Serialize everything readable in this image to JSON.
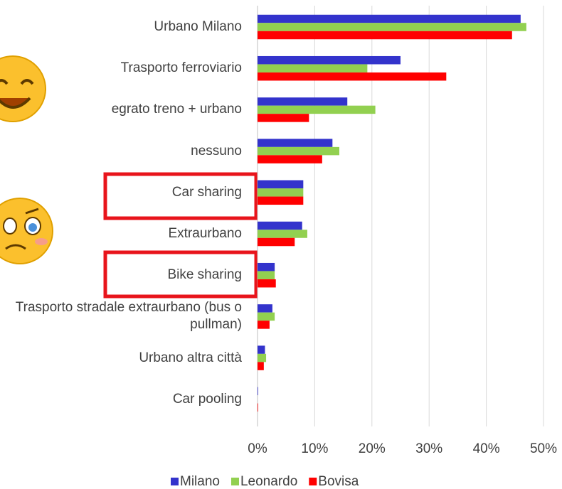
{
  "chart_data": {
    "type": "hbar",
    "categories": [
      "Urbano Milano",
      "Trasporto ferroviario",
      "egrato treno + urbano",
      "nessuno",
      "Car sharing",
      "Extraurbano",
      "Bike sharing",
      "Trasporto stradale extraurbano (bus o pullman)",
      "Urbano altra città",
      "Car pooling"
    ],
    "series": [
      {
        "name": "Milano",
        "color": "#3333cc",
        "values": [
          46.0,
          25.0,
          15.7,
          13.1,
          8.0,
          7.8,
          3.0,
          2.6,
          1.3,
          0.1
        ]
      },
      {
        "name": "Leonardo",
        "color": "#92d050",
        "values": [
          47.0,
          19.2,
          20.6,
          14.3,
          8.0,
          8.7,
          3.0,
          3.0,
          1.5,
          0
        ]
      },
      {
        "name": "Bovisa",
        "color": "#ff0000",
        "values": [
          44.5,
          33.0,
          9.0,
          11.3,
          8.0,
          6.5,
          3.2,
          2.1,
          1.1,
          0.1
        ]
      }
    ],
    "xlim": [
      0,
      50
    ],
    "xticks": [
      {
        "value": 0,
        "label": "0%"
      },
      {
        "value": 10,
        "label": "10%"
      },
      {
        "value": 20,
        "label": "20%"
      },
      {
        "value": 30,
        "label": "30%"
      },
      {
        "value": 40,
        "label": "40%"
      },
      {
        "value": 50,
        "label": "50%"
      }
    ],
    "grid": true
  }
}
